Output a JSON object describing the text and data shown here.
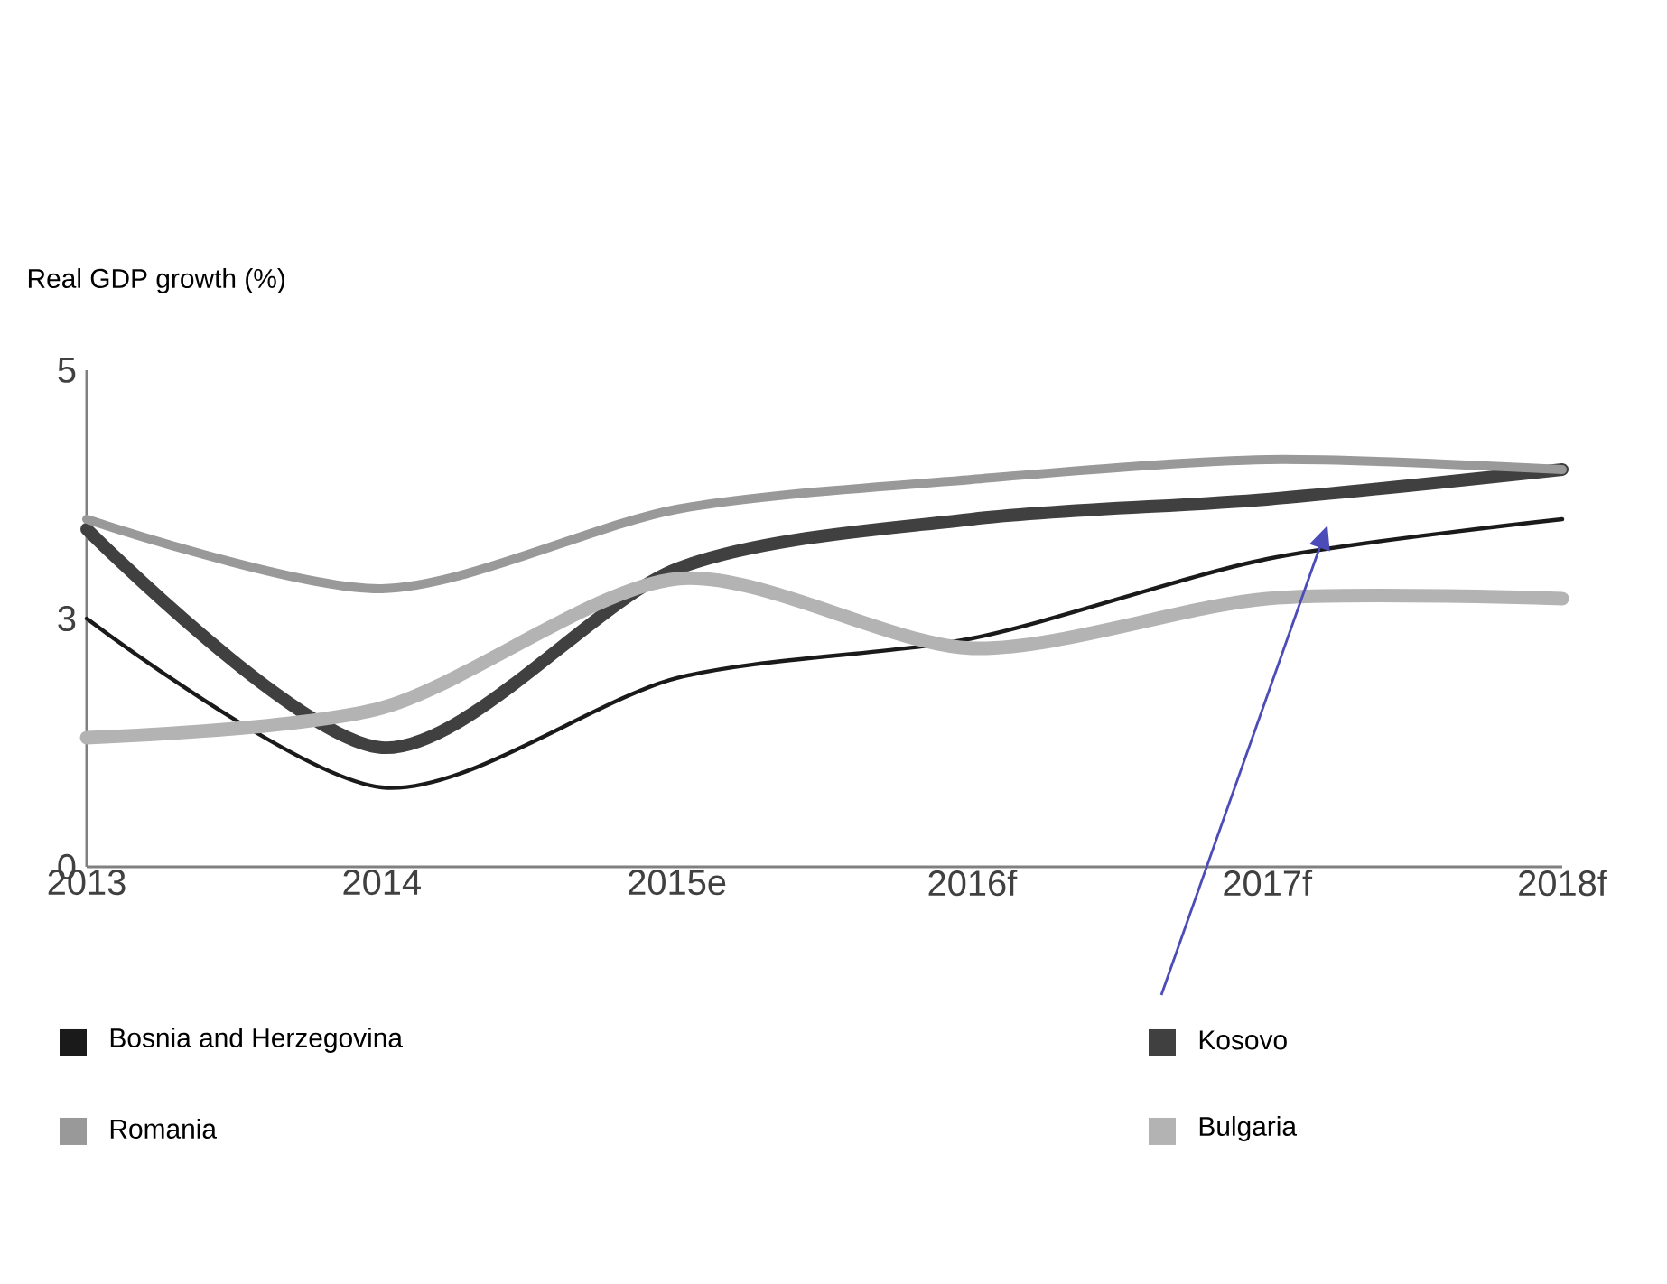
{
  "chart_data": {
    "type": "line",
    "ylabel": "Real GDP growth (%)",
    "categories": [
      "2013",
      "2014",
      "2015e",
      "2016f",
      "2017f",
      "2018f"
    ],
    "ylim": [
      0,
      5
    ],
    "yticks": [
      0,
      {
        "value": 2.5,
        "label": "3"
      },
      5
    ],
    "legend": "bottom",
    "grid": false,
    "marker": "none",
    "line_style": "solid",
    "series": [
      {
        "name": "Bosnia and Herzegovina",
        "color": "#1a1a1a",
        "values": [
          2.5,
          0.8,
          1.9,
          2.3,
          3.1,
          3.5
        ]
      },
      {
        "name": "Kosovo",
        "color": "#404040",
        "values": [
          3.4,
          1.2,
          3.0,
          3.5,
          3.7,
          4.0
        ]
      },
      {
        "name": "Romania",
        "color": "#999999",
        "values": [
          3.5,
          2.8,
          3.6,
          3.9,
          4.1,
          4.0
        ]
      },
      {
        "name": "Bulgaria",
        "color": "#b3b3b3",
        "values": [
          1.3,
          1.6,
          2.9,
          2.2,
          2.7,
          2.7
        ]
      }
    ]
  }
}
